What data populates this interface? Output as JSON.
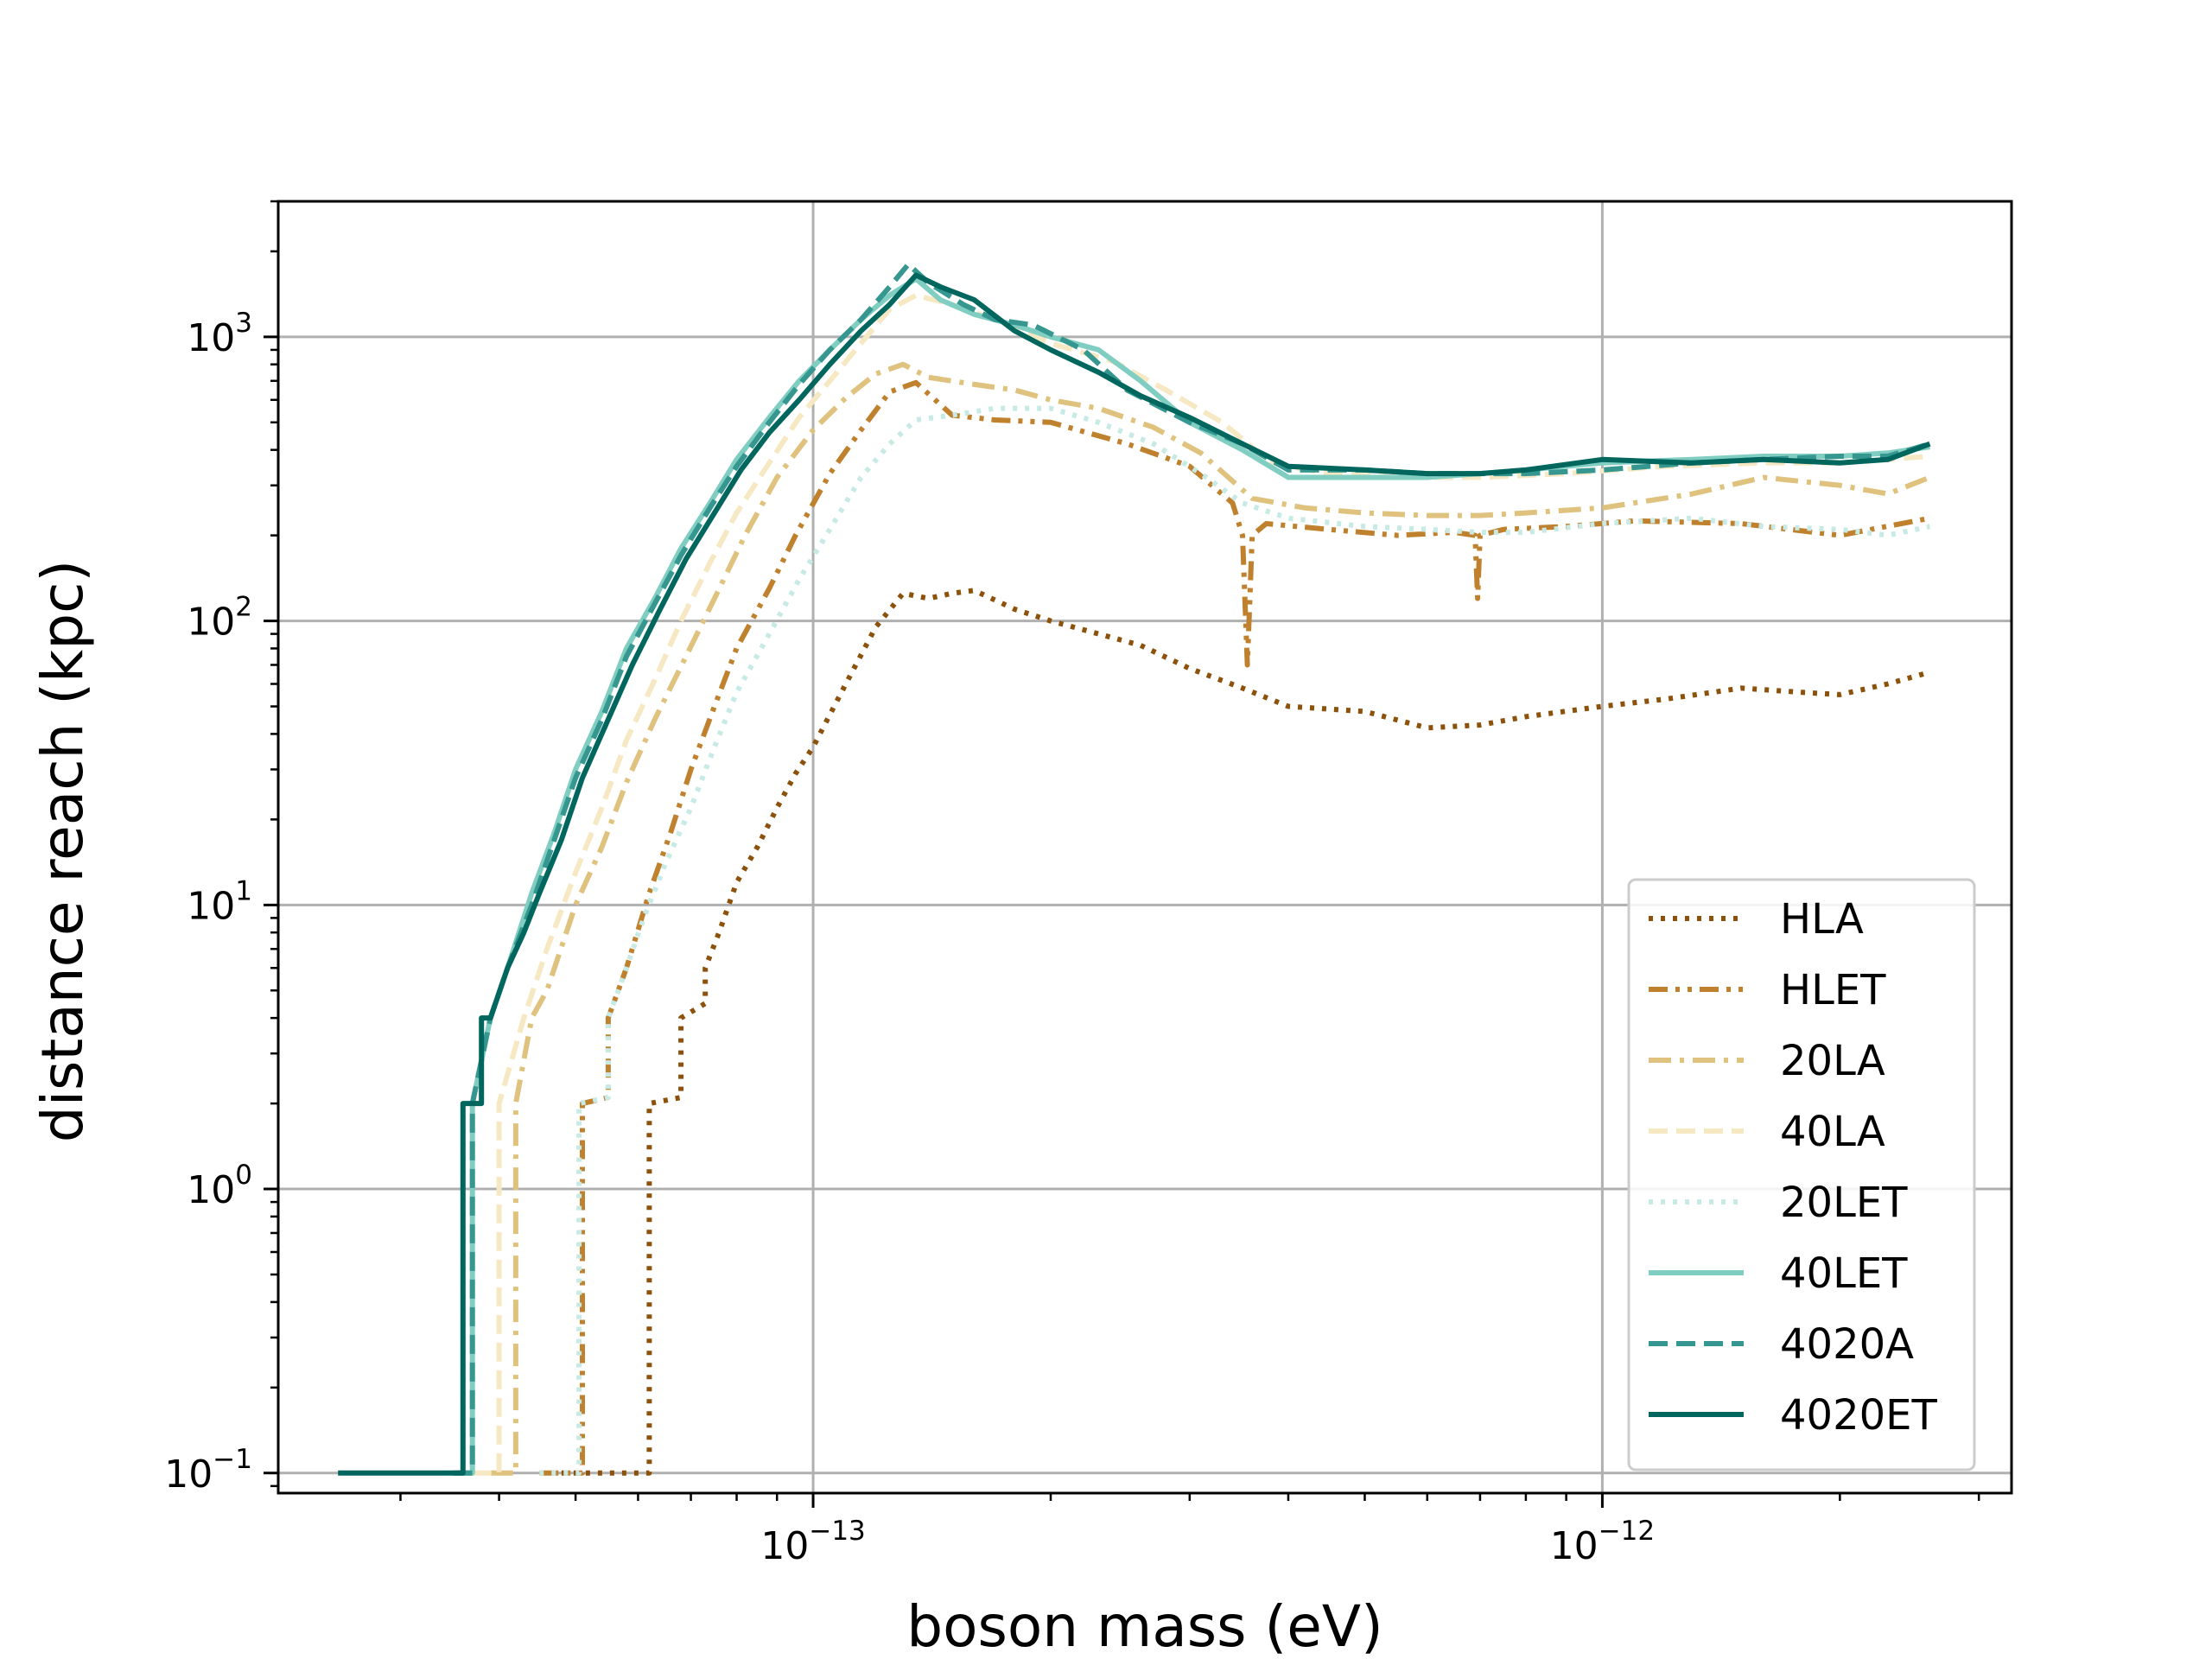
{
  "chart_data": {
    "type": "line",
    "title": "",
    "xlabel": "boson mass (eV)",
    "ylabel": "distance reach (kpc)",
    "xscale": "log",
    "yscale": "log",
    "xlim": [
      2.1e-14,
      3.3e-12
    ],
    "ylim": [
      0.085,
      3000
    ],
    "grid": true,
    "legend_position": "lower-right",
    "xtick_labels": [
      {
        "value": 1e-13,
        "base": "10",
        "exp": "−13"
      },
      {
        "value": 1e-12,
        "base": "10",
        "exp": "−12"
      }
    ],
    "ytick_labels": [
      {
        "value": 0.1,
        "base": "10",
        "exp": "−1"
      },
      {
        "value": 1,
        "base": "10",
        "exp": "0"
      },
      {
        "value": 10,
        "base": "10",
        "exp": "1"
      },
      {
        "value": 100,
        "base": "10",
        "exp": "2"
      },
      {
        "value": 1000,
        "base": "10",
        "exp": "3"
      }
    ],
    "series": [
      {
        "name": "HLA",
        "color": "#8c510a",
        "dash": "dotted",
        "x": [
          4.8e-14,
          6.2e-14,
          6.2e-14,
          6.8e-14,
          6.8e-14,
          7.3e-14,
          7.3e-14,
          7.6e-14,
          8e-14,
          8.5e-14,
          9e-14,
          9.5e-14,
          1e-13,
          1.1e-13,
          1.2e-13,
          1.3e-13,
          1.4e-13,
          1.5e-13,
          1.6e-13,
          1.8e-13,
          2e-13,
          2.3e-13,
          2.6e-13,
          3e-13,
          3.5e-13,
          4e-13,
          5e-13,
          6e-13,
          7e-13,
          8e-13,
          1e-12,
          1.2e-12,
          1.5e-12,
          1.8e-12,
          2e-12,
          2.3e-12,
          2.6e-12
        ],
        "y": [
          0.1,
          0.1,
          2.0,
          2.1,
          4.0,
          4.5,
          6.0,
          8.0,
          12.0,
          16.0,
          22.0,
          29.0,
          36.0,
          60.0,
          95.0,
          125.0,
          120.0,
          125.0,
          128.0,
          110.0,
          100.0,
          90.0,
          82.0,
          68.0,
          58.0,
          50.0,
          48.0,
          42.0,
          43.0,
          46.0,
          50.0,
          53.0,
          58.0,
          56.0,
          55.0,
          60.0,
          66.0
        ]
      },
      {
        "name": "HLET",
        "color": "#bf812d",
        "dash": "dashdotdot",
        "x": [
          4.5e-14,
          5.1e-14,
          5.1e-14,
          5.5e-14,
          5.5e-14,
          5.8e-14,
          6.2e-14,
          6.6e-14,
          7e-14,
          7.5e-14,
          8e-14,
          8.8e-14,
          9.5e-14,
          1.05e-13,
          1.15e-13,
          1.25e-13,
          1.35e-13,
          1.5e-13,
          1.7e-13,
          2e-13,
          2.5e-13,
          3e-13,
          3.4e-13,
          3.5e-13,
          3.55e-13,
          3.6e-13,
          3.75e-13,
          4.5e-13,
          5.5e-13,
          6.5e-13,
          6.9e-13,
          6.95e-13,
          7e-13,
          7.5e-13,
          9e-13,
          1.1e-12,
          1.5e-12,
          2e-12,
          2.6e-12
        ],
        "y": [
          0.1,
          0.1,
          2.0,
          2.1,
          4.0,
          6.0,
          11.0,
          18.0,
          30.0,
          50.0,
          80.0,
          130.0,
          200.0,
          330.0,
          470.0,
          640.0,
          690.0,
          530.0,
          510.0,
          500.0,
          420.0,
          350.0,
          260.0,
          200.0,
          70.0,
          200.0,
          220.0,
          210.0,
          200.0,
          205.0,
          200.0,
          120.0,
          200.0,
          210.0,
          215.0,
          225.0,
          220.0,
          200.0,
          230.0
        ]
      },
      {
        "name": "20LA",
        "color": "#dfc27d",
        "dash": "dashdot",
        "x": [
          3.9e-14,
          4.2e-14,
          4.2e-14,
          4.4e-14,
          4.6e-14,
          5e-14,
          5.4e-14,
          5.8e-14,
          6.3e-14,
          6.9e-14,
          7.5e-14,
          8.2e-14,
          9e-14,
          1e-13,
          1.1e-13,
          1.2e-13,
          1.3e-13,
          1.4e-13,
          1.6e-13,
          1.8e-13,
          2e-13,
          2.3e-13,
          2.7e-13,
          3.1e-13,
          3.6e-13,
          4.2e-13,
          5e-13,
          6e-13,
          7e-13,
          8e-13,
          1e-12,
          1.3e-12,
          1.6e-12,
          2e-12,
          2.3e-12,
          2.6e-12
        ],
        "y": [
          0.1,
          0.1,
          2.0,
          4.0,
          5.0,
          10.0,
          16.0,
          27.0,
          45.0,
          75.0,
          120.0,
          200.0,
          320.0,
          470.0,
          610.0,
          740.0,
          800.0,
          720.0,
          680.0,
          650.0,
          600.0,
          560.0,
          480.0,
          390.0,
          270.0,
          250.0,
          240.0,
          235.0,
          235.0,
          240.0,
          250.0,
          280.0,
          320.0,
          300.0,
          280.0,
          320.0
        ]
      },
      {
        "name": "40LA",
        "color": "#f6e8c3",
        "dash": "dashed",
        "x": [
          3.7e-14,
          4e-14,
          4e-14,
          4.3e-14,
          4.6e-14,
          5e-14,
          5.4e-14,
          5.8e-14,
          6.3e-14,
          6.8e-14,
          7.4e-14,
          8e-14,
          8.8e-14,
          9.6e-14,
          1.05e-13,
          1.15e-13,
          1.25e-13,
          1.35e-13,
          1.5e-13,
          1.7e-13,
          2e-13,
          2.4e-13,
          2.8e-13,
          3.3e-13,
          3.8e-13,
          4.5e-13,
          5.5e-13,
          7e-13,
          9e-13,
          1.2e-12,
          1.6e-12,
          2e-12,
          2.6e-12
        ],
        "y": [
          0.1,
          0.1,
          2.0,
          4.0,
          7.0,
          13.0,
          22.0,
          38.0,
          62.0,
          100.0,
          160.0,
          240.0,
          360.0,
          520.0,
          700.0,
          950.0,
          1250.0,
          1400.0,
          1300.0,
          1150.0,
          950.0,
          820.0,
          650.0,
          500.0,
          360.0,
          330.0,
          320.0,
          320.0,
          330.0,
          350.0,
          360.0,
          360.0,
          380.0
        ]
      },
      {
        "name": "20LET",
        "color": "#c7eae5",
        "dash": "dotted",
        "x": [
          4.5e-14,
          5.05e-14,
          5.05e-14,
          5.5e-14,
          5.5e-14,
          5.8e-14,
          6.1e-14,
          6.5e-14,
          7e-14,
          7.5e-14,
          8e-14,
          8.8e-14,
          9.6e-14,
          1.05e-13,
          1.15e-13,
          1.25e-13,
          1.35e-13,
          1.5e-13,
          1.7e-13,
          2e-13,
          2.3e-13,
          2.7e-13,
          3.1e-13,
          3.5e-13,
          4e-13,
          5e-13,
          6e-13,
          7e-13,
          8e-13,
          1e-12,
          1.3e-12,
          1.6e-12,
          2e-12,
          2.3e-12,
          2.6e-12
        ],
        "y": [
          0.1,
          0.1,
          2.0,
          2.1,
          4.0,
          6.0,
          9.0,
          14.0,
          22.0,
          36.0,
          56.0,
          90.0,
          140.0,
          210.0,
          320.0,
          420.0,
          510.0,
          530.0,
          560.0,
          560.0,
          500.0,
          420.0,
          330.0,
          260.0,
          230.0,
          215.0,
          210.0,
          205.0,
          205.0,
          220.0,
          230.0,
          215.0,
          210.0,
          200.0,
          215.0
        ]
      },
      {
        "name": "40LET",
        "color": "#80cdc1",
        "dash": "solid",
        "x": [
          3.5e-14,
          3.7e-14,
          3.7e-14,
          3.9e-14,
          4.1e-14,
          4.4e-14,
          4.7e-14,
          5e-14,
          5.4e-14,
          5.8e-14,
          6.3e-14,
          6.8e-14,
          7.4e-14,
          8e-14,
          8.8e-14,
          9.6e-14,
          1.05e-13,
          1.15e-13,
          1.25e-13,
          1.35e-13,
          1.45e-13,
          1.6e-13,
          1.8e-13,
          2e-13,
          2.3e-13,
          2.6e-13,
          3e-13,
          3.5e-13,
          4e-13,
          5e-13,
          6e-13,
          7e-13,
          8e-13,
          1e-12,
          1.3e-12,
          1.6e-12,
          2e-12,
          2.3e-12,
          2.6e-12
        ],
        "y": [
          0.1,
          0.1,
          2.0,
          4.0,
          6.0,
          11.0,
          18.0,
          30.0,
          48.0,
          80.0,
          120.0,
          180.0,
          260.0,
          370.0,
          520.0,
          700.0,
          900.0,
          1150.0,
          1400.0,
          1600.0,
          1350.0,
          1200.0,
          1100.0,
          1000.0,
          900.0,
          700.0,
          500.0,
          400.0,
          320.0,
          320.0,
          320.0,
          330.0,
          340.0,
          360.0,
          370.0,
          380.0,
          380.0,
          390.0,
          410.0
        ]
      },
      {
        "name": "4020A",
        "color": "#35978f",
        "dash": "dashed",
        "x": [
          3.5e-14,
          3.7e-14,
          3.7e-14,
          3.9e-14,
          4.1e-14,
          4.4e-14,
          4.7e-14,
          5e-14,
          5.4e-14,
          5.8e-14,
          6.3e-14,
          6.8e-14,
          7.4e-14,
          8e-14,
          8.8e-14,
          9.6e-14,
          1.05e-13,
          1.15e-13,
          1.25e-13,
          1.32e-13,
          1.4e-13,
          1.55e-13,
          1.7e-13,
          1.9e-13,
          2.2e-13,
          2.5e-13,
          3e-13,
          3.5e-13,
          4e-13,
          5e-13,
          6e-13,
          7e-13,
          8e-13,
          1e-12,
          1.3e-12,
          1.6e-12,
          2e-12,
          2.3e-12,
          2.6e-12
        ],
        "y": [
          0.1,
          0.1,
          2.0,
          4.0,
          6.0,
          10.0,
          17.0,
          28.0,
          45.0,
          75.0,
          115.0,
          170.0,
          250.0,
          350.0,
          500.0,
          680.0,
          900.0,
          1150.0,
          1500.0,
          1800.0,
          1550.0,
          1300.0,
          1150.0,
          1100.0,
          900.0,
          650.0,
          500.0,
          420.0,
          340.0,
          340.0,
          330.0,
          330.0,
          330.0,
          340.0,
          360.0,
          370.0,
          380.0,
          380.0,
          420.0
        ]
      },
      {
        "name": "4020ET",
        "color": "#01665e",
        "dash": "solid",
        "x": [
          2.5e-14,
          3.6e-14,
          3.6e-14,
          3.8e-14,
          3.8e-14,
          3.9e-14,
          4.1e-14,
          4.3e-14,
          4.5e-14,
          4.8e-14,
          5.1e-14,
          5.5e-14,
          5.9e-14,
          6.4e-14,
          6.9e-14,
          7.5e-14,
          8.1e-14,
          8.8e-14,
          9.6e-14,
          1.05e-13,
          1.15e-13,
          1.25e-13,
          1.35e-13,
          1.45e-13,
          1.6e-13,
          1.8e-13,
          2e-13,
          2.3e-13,
          2.6e-13,
          3e-13,
          3.5e-13,
          4e-13,
          5e-13,
          6e-13,
          7e-13,
          8e-13,
          1e-12,
          1.3e-12,
          1.6e-12,
          2e-12,
          2.3e-12,
          2.6e-12
        ],
        "y": [
          0.1,
          0.1,
          2.0,
          2.0,
          4.0,
          4.0,
          6.0,
          8.0,
          11.0,
          17.0,
          28.0,
          45.0,
          70.0,
          110.0,
          165.0,
          240.0,
          340.0,
          460.0,
          600.0,
          800.0,
          1050.0,
          1300.0,
          1650.0,
          1500.0,
          1350.0,
          1050.0,
          900.0,
          750.0,
          620.0,
          520.0,
          420.0,
          350.0,
          340.0,
          330.0,
          330.0,
          340.0,
          370.0,
          360.0,
          370.0,
          360.0,
          370.0,
          420.0
        ]
      }
    ]
  }
}
